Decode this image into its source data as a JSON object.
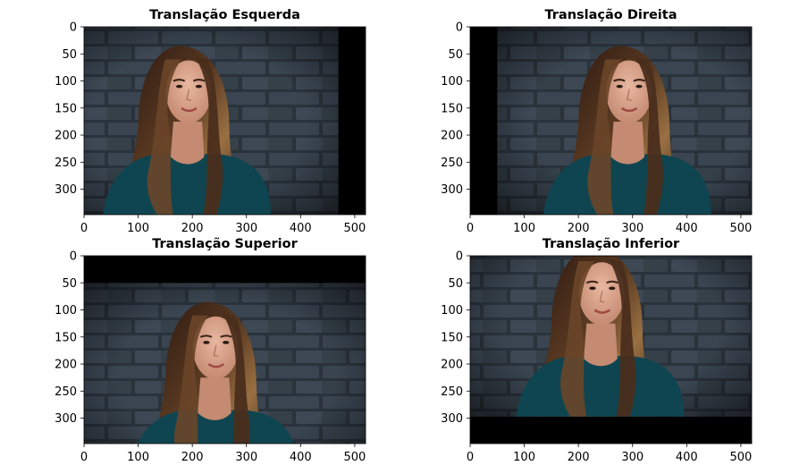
{
  "chart_data": [
    {
      "type": "image",
      "title": "Translação Esquerda",
      "xlim": [
        0,
        520
      ],
      "ylim": [
        347,
        0
      ],
      "xticks": [
        0,
        100,
        200,
        300,
        400,
        500
      ],
      "yticks": [
        0,
        50,
        100,
        150,
        200,
        250,
        300
      ],
      "shift": {
        "direction": "left",
        "amount": 50
      },
      "image_content": "portrait-woman-brick-wall"
    },
    {
      "type": "image",
      "title": "Translação Direita",
      "xlim": [
        0,
        520
      ],
      "ylim": [
        347,
        0
      ],
      "xticks": [
        0,
        100,
        200,
        300,
        400,
        500
      ],
      "yticks": [
        0,
        50,
        100,
        150,
        200,
        250,
        300
      ],
      "shift": {
        "direction": "right",
        "amount": 50
      },
      "image_content": "portrait-woman-brick-wall"
    },
    {
      "type": "image",
      "title": "Translação Superior",
      "xlim": [
        0,
        520
      ],
      "ylim": [
        347,
        0
      ],
      "xticks": [
        0,
        100,
        200,
        300,
        400,
        500
      ],
      "yticks": [
        0,
        50,
        100,
        150,
        200,
        250,
        300
      ],
      "shift": {
        "direction": "down",
        "amount": 50
      },
      "image_content": "portrait-woman-brick-wall"
    },
    {
      "type": "image",
      "title": "Translação Inferior",
      "xlim": [
        0,
        520
      ],
      "ylim": [
        347,
        0
      ],
      "xticks": [
        0,
        100,
        200,
        300,
        400,
        500
      ],
      "yticks": [
        0,
        50,
        100,
        150,
        200,
        250,
        300
      ],
      "shift": {
        "direction": "up",
        "amount": 50
      },
      "image_content": "portrait-woman-brick-wall"
    }
  ],
  "colors": {
    "wall": "#2e3640",
    "mortar": "#4a5663",
    "hair": "#3a2418",
    "hair_highlight": "#8a6238",
    "skin": "#d9a08a",
    "shirt": "#0f4550",
    "fill": "#000000"
  }
}
